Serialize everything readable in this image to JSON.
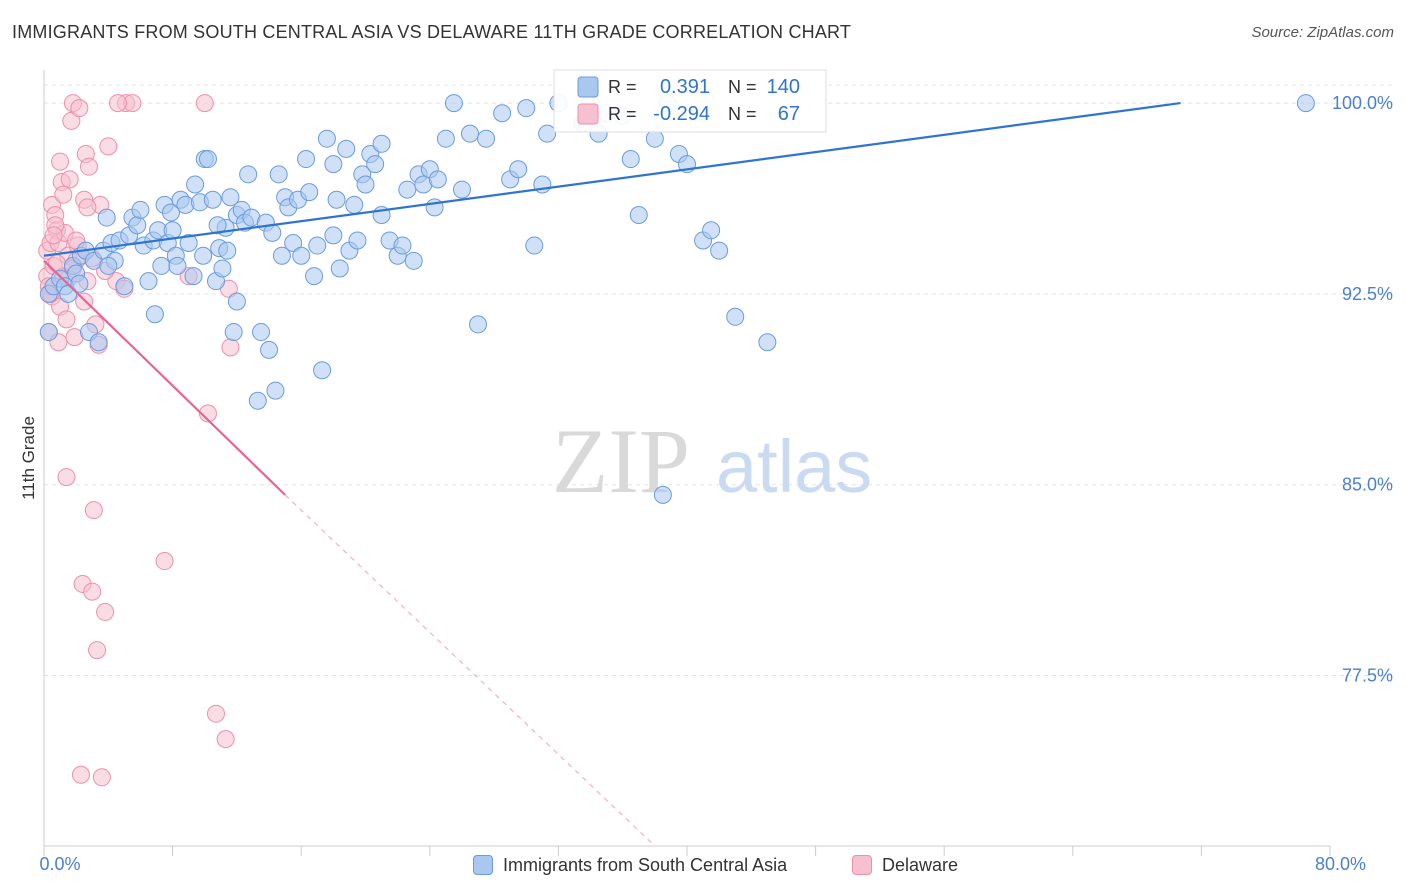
{
  "header": {
    "title": "IMMIGRANTS FROM SOUTH CENTRAL ASIA VS DELAWARE 11TH GRADE CORRELATION CHART",
    "source": "Source: ZipAtlas.com"
  },
  "watermark": {
    "zip": "ZIP",
    "atlas": "atlas"
  },
  "legend_top": {
    "r_label": "R =",
    "n_label": "N =",
    "rows": [
      {
        "series": "blue",
        "r": "0.391",
        "n": "140"
      },
      {
        "series": "pink",
        "r": "-0.294",
        "n": "67"
      }
    ]
  },
  "legend_bottom": {
    "items": [
      {
        "series": "blue",
        "label": "Immigrants from South Central Asia"
      },
      {
        "series": "pink",
        "label": "Delaware"
      }
    ]
  },
  "colors": {
    "blue_fill": "#a9c8f0",
    "blue_stroke": "#6a9be0",
    "blue_line": "#2f74d0",
    "pink_fill": "#f6c0d0",
    "pink_stroke": "#ee8fab",
    "pink_line": "#e8648e",
    "axis_label": "#4b7fd1",
    "grid": "#e3e3e3"
  },
  "chart_data": {
    "type": "scatter",
    "title": "IMMIGRANTS FROM SOUTH CENTRAL ASIA VS DELAWARE 11TH GRADE CORRELATION CHART",
    "xlabel": "",
    "ylabel": "11th Grade",
    "xlim": [
      0,
      80
    ],
    "ylim": [
      70.8,
      101.3
    ],
    "x_tick_labels": [
      "0.0%",
      "80.0%"
    ],
    "y_ticks": [
      77.5,
      85.0,
      92.5,
      100.0
    ],
    "y_tick_labels": [
      "77.5%",
      "85.0%",
      "92.5%",
      "100.0%"
    ],
    "grid": true,
    "series": [
      {
        "name": "Immigrants from South Central Asia",
        "color": "blue",
        "r": 0.391,
        "n": 140,
        "trend": {
          "x0": 0.0,
          "y0": 94.0,
          "x1": 70.7,
          "y1": 100.0
        },
        "points": [
          [
            0.3,
            92.5
          ],
          [
            0.3,
            91.0
          ],
          [
            0.6,
            92.8
          ],
          [
            1.0,
            93.1
          ],
          [
            1.3,
            92.8
          ],
          [
            1.5,
            92.5
          ],
          [
            1.8,
            93.6
          ],
          [
            2.0,
            93.3
          ],
          [
            2.3,
            94.0
          ],
          [
            2.6,
            94.2
          ],
          [
            2.8,
            91.0
          ],
          [
            3.1,
            93.8
          ],
          [
            3.4,
            90.6
          ],
          [
            3.7,
            94.2
          ],
          [
            3.9,
            95.5
          ],
          [
            4.2,
            94.5
          ],
          [
            4.4,
            93.8
          ],
          [
            4.7,
            94.6
          ],
          [
            5.0,
            92.8
          ],
          [
            5.3,
            94.8
          ],
          [
            5.5,
            95.5
          ],
          [
            5.8,
            95.2
          ],
          [
            6.0,
            95.8
          ],
          [
            6.2,
            94.4
          ],
          [
            6.5,
            93.0
          ],
          [
            6.8,
            94.6
          ],
          [
            6.9,
            91.7
          ],
          [
            7.1,
            95.0
          ],
          [
            7.3,
            93.6
          ],
          [
            7.5,
            96.0
          ],
          [
            7.7,
            94.5
          ],
          [
            7.9,
            95.7
          ],
          [
            8.2,
            94.0
          ],
          [
            8.3,
            93.6
          ],
          [
            8.5,
            96.2
          ],
          [
            8.8,
            96.0
          ],
          [
            9.0,
            94.5
          ],
          [
            9.3,
            93.2
          ],
          [
            9.4,
            96.8
          ],
          [
            9.7,
            96.1
          ],
          [
            9.9,
            94.0
          ],
          [
            10.0,
            97.8
          ],
          [
            10.2,
            97.8
          ],
          [
            10.5,
            96.2
          ],
          [
            10.7,
            93.0
          ],
          [
            10.9,
            94.3
          ],
          [
            11.1,
            93.5
          ],
          [
            11.3,
            95.1
          ],
          [
            11.4,
            94.2
          ],
          [
            11.6,
            96.3
          ],
          [
            11.8,
            91.0
          ],
          [
            12.0,
            95.6
          ],
          [
            12.3,
            95.8
          ],
          [
            12.5,
            95.3
          ],
          [
            12.7,
            97.2
          ],
          [
            12.9,
            95.5
          ],
          [
            13.3,
            88.3
          ],
          [
            13.5,
            91.0
          ],
          [
            13.8,
            95.3
          ],
          [
            14.0,
            90.3
          ],
          [
            14.2,
            94.9
          ],
          [
            14.4,
            88.7
          ],
          [
            14.6,
            97.2
          ],
          [
            15.0,
            96.3
          ],
          [
            15.2,
            95.9
          ],
          [
            15.5,
            94.5
          ],
          [
            15.8,
            96.2
          ],
          [
            16.0,
            94.0
          ],
          [
            16.3,
            97.8
          ],
          [
            16.5,
            96.5
          ],
          [
            16.8,
            93.2
          ],
          [
            17.0,
            94.4
          ],
          [
            17.3,
            89.5
          ],
          [
            17.6,
            98.6
          ],
          [
            18.0,
            97.6
          ],
          [
            18.2,
            96.2
          ],
          [
            18.4,
            93.5
          ],
          [
            18.8,
            98.2
          ],
          [
            19.0,
            94.2
          ],
          [
            19.3,
            96.0
          ],
          [
            19.5,
            94.6
          ],
          [
            19.8,
            97.2
          ],
          [
            20.0,
            96.8
          ],
          [
            20.3,
            98.0
          ],
          [
            20.6,
            97.6
          ],
          [
            21.0,
            95.6
          ],
          [
            21.5,
            94.6
          ],
          [
            22.0,
            94.0
          ],
          [
            22.3,
            94.4
          ],
          [
            22.6,
            96.6
          ],
          [
            23.0,
            93.8
          ],
          [
            23.3,
            97.2
          ],
          [
            23.6,
            96.8
          ],
          [
            24.0,
            97.4
          ],
          [
            24.3,
            95.9
          ],
          [
            24.5,
            97.0
          ],
          [
            25.0,
            98.6
          ],
          [
            25.5,
            100.0
          ],
          [
            26.5,
            98.8
          ],
          [
            27.0,
            91.3
          ],
          [
            27.5,
            98.6
          ],
          [
            28.5,
            99.6
          ],
          [
            29.0,
            97.0
          ],
          [
            29.5,
            97.4
          ],
          [
            30.0,
            99.8
          ],
          [
            30.5,
            94.4
          ],
          [
            31.3,
            98.8
          ],
          [
            32.0,
            100.0
          ],
          [
            33.5,
            99.2
          ],
          [
            34.0,
            100.0
          ],
          [
            34.5,
            98.8
          ],
          [
            35.0,
            99.6
          ],
          [
            36.0,
            99.5
          ],
          [
            36.5,
            97.8
          ],
          [
            37.0,
            95.6
          ],
          [
            38.0,
            98.6
          ],
          [
            38.5,
            84.6
          ],
          [
            38.8,
            100.0
          ],
          [
            39.5,
            98.0
          ],
          [
            40.0,
            97.6
          ],
          [
            41.0,
            94.6
          ],
          [
            41.5,
            95.0
          ],
          [
            42.0,
            94.2
          ],
          [
            43.0,
            91.6
          ],
          [
            45.0,
            90.6
          ],
          [
            78.5,
            100.0
          ],
          [
            2.2,
            92.9
          ],
          [
            4.0,
            93.6
          ],
          [
            8.0,
            95.0
          ],
          [
            10.8,
            95.2
          ],
          [
            12.0,
            92.2
          ],
          [
            14.8,
            94.0
          ],
          [
            18.0,
            94.8
          ],
          [
            21.0,
            98.4
          ],
          [
            26.0,
            96.6
          ],
          [
            31.0,
            96.8
          ]
        ]
      },
      {
        "name": "Delaware",
        "color": "pink",
        "r": -0.294,
        "n": 67,
        "trend": {
          "x0": 0.0,
          "y0": 93.8,
          "x1": 15.0,
          "y1": 84.6
        },
        "trend_dashed_to": {
          "x1": 38.0,
          "y1": 70.8
        },
        "points": [
          [
            0.2,
            94.2
          ],
          [
            0.2,
            93.2
          ],
          [
            0.3,
            91.0
          ],
          [
            0.4,
            94.5
          ],
          [
            0.5,
            96.0
          ],
          [
            0.6,
            93.6
          ],
          [
            0.7,
            95.6
          ],
          [
            0.8,
            95.0
          ],
          [
            0.9,
            94.5
          ],
          [
            1.0,
            97.7
          ],
          [
            1.1,
            96.9
          ],
          [
            1.2,
            93.2
          ],
          [
            1.3,
            94.9
          ],
          [
            1.4,
            85.3
          ],
          [
            1.5,
            94.0
          ],
          [
            1.6,
            97.0
          ],
          [
            1.7,
            99.3
          ],
          [
            1.8,
            100.0
          ],
          [
            2.0,
            93.8
          ],
          [
            2.1,
            94.4
          ],
          [
            2.2,
            99.8
          ],
          [
            2.3,
            73.6
          ],
          [
            2.4,
            81.1
          ],
          [
            2.5,
            96.2
          ],
          [
            2.6,
            98.0
          ],
          [
            2.7,
            93.0
          ],
          [
            2.8,
            97.5
          ],
          [
            3.0,
            80.8
          ],
          [
            3.1,
            84.0
          ],
          [
            3.2,
            91.3
          ],
          [
            3.3,
            78.5
          ],
          [
            3.4,
            90.5
          ],
          [
            3.5,
            96.0
          ],
          [
            3.6,
            73.5
          ],
          [
            3.8,
            80.0
          ],
          [
            4.0,
            98.3
          ],
          [
            4.5,
            93.0
          ],
          [
            5.0,
            92.7
          ],
          [
            5.1,
            100.0
          ],
          [
            5.5,
            100.0
          ],
          [
            7.5,
            82.0
          ],
          [
            9.0,
            93.2
          ],
          [
            10.0,
            100.0
          ],
          [
            10.2,
            87.8
          ],
          [
            10.7,
            76.0
          ],
          [
            11.3,
            75.0
          ],
          [
            11.5,
            92.7
          ],
          [
            11.6,
            90.4
          ],
          [
            0.5,
            92.4
          ],
          [
            0.7,
            95.2
          ],
          [
            1.0,
            92.0
          ],
          [
            1.8,
            93.5
          ],
          [
            0.3,
            92.8
          ],
          [
            0.9,
            90.6
          ],
          [
            2.5,
            92.2
          ],
          [
            1.2,
            96.4
          ],
          [
            3.8,
            93.4
          ],
          [
            0.6,
            94.8
          ],
          [
            1.5,
            93.1
          ],
          [
            2.0,
            94.6
          ],
          [
            3.0,
            93.9
          ],
          [
            4.6,
            100.0
          ],
          [
            0.4,
            92.5
          ],
          [
            1.4,
            91.5
          ],
          [
            2.7,
            95.9
          ],
          [
            0.8,
            93.7
          ],
          [
            1.9,
            90.8
          ]
        ]
      }
    ]
  }
}
